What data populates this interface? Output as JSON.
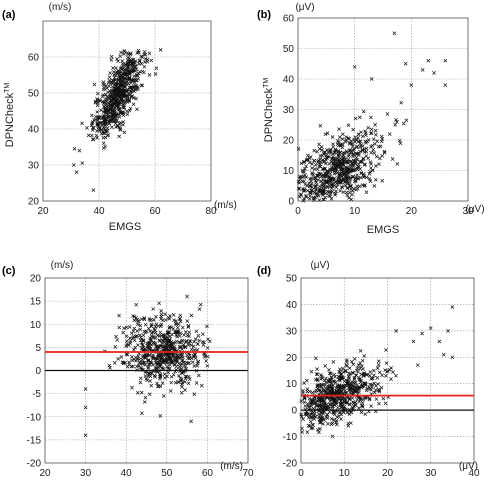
{
  "chart_data": [
    {
      "panel": "(a)",
      "type": "scatter",
      "xlabel": "EMGS",
      "ylabel": "DPNCheck",
      "ylabel_sup": "TM",
      "x_unit": "(m/s)",
      "y_unit": "(m/s)",
      "xlim": [
        20,
        80
      ],
      "ylim": [
        20,
        70
      ],
      "xticks": [
        "20",
        "40",
        "60",
        "80"
      ],
      "yticks": [
        "20",
        "30",
        "40",
        "50",
        "60"
      ],
      "points_description_note": "",
      "cluster": {
        "x_center": 47,
        "x_sd": 4.5,
        "y_center": 50,
        "y_sd": 6.5,
        "r": 0.75,
        "n": 600,
        "x_range": [
          30,
          62
        ],
        "y_range": [
          23,
          62
        ]
      },
      "outliers": [
        [
          38,
          23
        ],
        [
          31,
          30
        ],
        [
          32,
          28
        ],
        [
          33,
          34
        ],
        [
          62,
          62
        ],
        [
          58,
          61
        ]
      ]
    },
    {
      "panel": "(b)",
      "type": "scatter",
      "xlabel": "EMGS",
      "ylabel": "DPNCheck",
      "ylabel_sup": "TM",
      "x_unit": "(μV)",
      "y_unit": "(μV)",
      "xlim": [
        0,
        30
      ],
      "ylim": [
        0,
        60
      ],
      "xticks": [
        "0",
        "10",
        "20",
        "30"
      ],
      "yticks": [
        "0",
        "10",
        "20",
        "30",
        "40",
        "50",
        "60"
      ],
      "cluster": {
        "x_center": 6,
        "x_sd": 4.5,
        "y_center": 9,
        "y_sd": 7,
        "r": 0.6,
        "n": 600,
        "x_range": [
          0,
          26
        ],
        "y_range": [
          0,
          47
        ]
      },
      "outliers": [
        [
          17,
          55
        ],
        [
          23,
          46
        ],
        [
          26,
          46
        ],
        [
          19,
          45
        ],
        [
          10,
          44
        ],
        [
          22,
          43
        ],
        [
          24,
          42
        ],
        [
          26,
          38
        ],
        [
          13,
          40
        ],
        [
          20,
          38
        ]
      ]
    },
    {
      "panel": "(c)",
      "type": "scatter",
      "xlabel": "",
      "ylabel": "",
      "x_unit": "(m/s)",
      "y_unit": "(m/s)",
      "xlim": [
        20,
        70
      ],
      "ylim": [
        -20,
        20
      ],
      "xticks": [
        "20",
        "30",
        "40",
        "50",
        "60",
        "70"
      ],
      "yticks": [
        "-20",
        "-15",
        "-10",
        "-5",
        "0",
        "5",
        "10",
        "15",
        "20"
      ],
      "mean_line": 4,
      "mean_line_color": "#e8211c",
      "zero_line": 0,
      "cluster": {
        "x_center": 49,
        "x_sd": 5,
        "y_center": 4,
        "y_sd": 4,
        "r": 0.0,
        "n": 600,
        "x_range": [
          30,
          62
        ],
        "y_range": [
          -14,
          16
        ]
      },
      "outliers": [
        [
          30,
          -14
        ],
        [
          30,
          -8
        ],
        [
          30,
          -4
        ],
        [
          55,
          16
        ],
        [
          56,
          -11
        ]
      ]
    },
    {
      "panel": "(d)",
      "type": "scatter",
      "xlabel": "",
      "ylabel": "",
      "x_unit": "(μV)",
      "y_unit": "(μV)",
      "xlim": [
        0,
        40
      ],
      "ylim": [
        -20,
        50
      ],
      "xticks": [
        "0",
        "10",
        "20",
        "30",
        "40"
      ],
      "yticks": [
        "-20",
        "-10",
        "0",
        "10",
        "20",
        "30",
        "40",
        "50"
      ],
      "mean_line": 5.5,
      "mean_line_color": "#e8211c",
      "zero_line": 0,
      "cluster": {
        "x_center": 8,
        "x_sd": 5,
        "y_center": 5,
        "y_sd": 6,
        "r": 0.45,
        "n": 600,
        "x_range": [
          0,
          36
        ],
        "y_range": [
          -12,
          40
        ]
      },
      "outliers": [
        [
          35,
          39
        ],
        [
          34,
          30
        ],
        [
          32,
          26
        ],
        [
          30,
          31
        ],
        [
          28,
          29
        ],
        [
          33,
          21
        ],
        [
          35,
          20
        ],
        [
          26,
          26
        ],
        [
          22,
          30
        ],
        [
          27,
          17
        ]
      ]
    }
  ]
}
